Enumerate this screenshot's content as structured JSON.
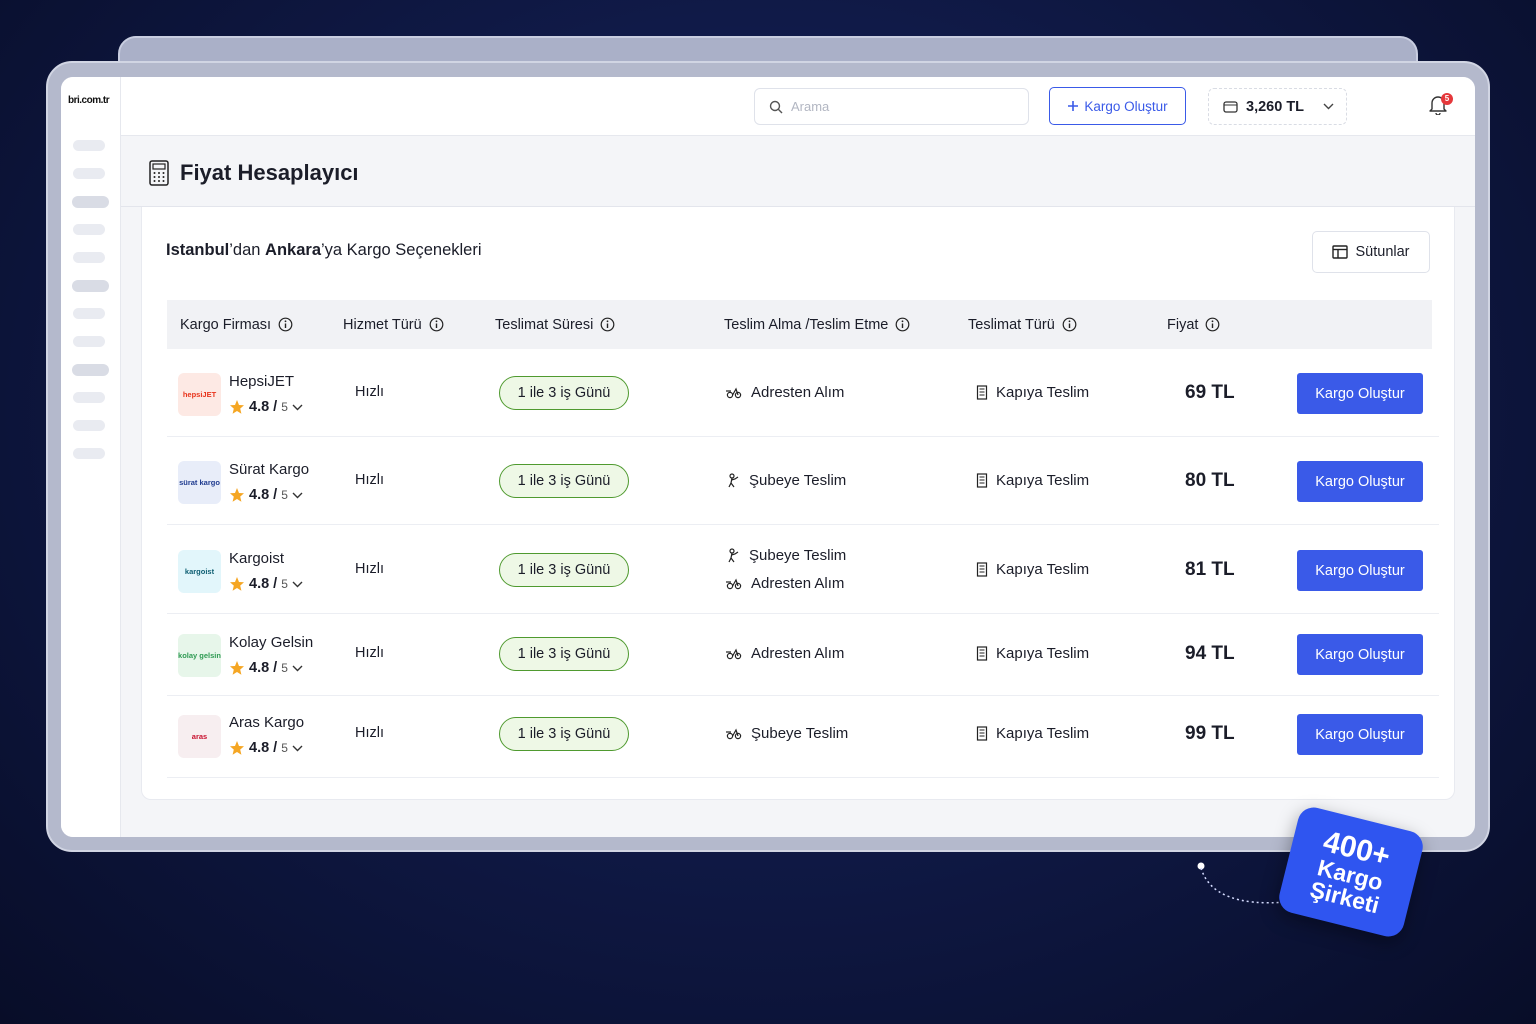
{
  "app": {
    "logo": "bri.com.tr"
  },
  "topbar": {
    "search_placeholder": "Arama",
    "create_label": "Kargo Oluştur",
    "balance": "3,260 TL",
    "notifications_count": "5"
  },
  "page": {
    "title": "Fiyat Hesaplayıcı"
  },
  "card": {
    "title_from": "Istanbul",
    "title_from_suffix": "’dan ",
    "title_to": "Ankara",
    "title_rest": "’ya Kargo Seçenekleri",
    "columns_label": "Sütunlar"
  },
  "table": {
    "headers": [
      "Kargo Firması",
      "Hizmet Türü",
      "Teslimat Süresi",
      "Teslim Alma /Teslim Etme",
      "Teslimat Türü",
      "Fiyat"
    ],
    "rows": [
      {
        "name": "HepsiJET",
        "logo_text": "hepsiJET",
        "rating": "4.8",
        "rating_max": "5",
        "service": "Hızlı",
        "duration": "1 ile 3 iş Günü",
        "pickup": [
          "Adresten Alım"
        ],
        "delivery": "Kapıya Teslim",
        "price": "69 TL",
        "action": "Kargo Oluştur"
      },
      {
        "name": "Sürat Kargo",
        "logo_text": "sürat kargo",
        "rating": "4.8",
        "rating_max": "5",
        "service": "Hızlı",
        "duration": "1 ile 3 iş Günü",
        "pickup": [
          "Şubeye Teslim"
        ],
        "delivery": "Kapıya Teslim",
        "price": "80 TL",
        "action": "Kargo Oluştur"
      },
      {
        "name": "Kargoist",
        "logo_text": "kargoist",
        "rating": "4.8",
        "rating_max": "5",
        "service": "Hızlı",
        "duration": "1 ile 3 iş Günü",
        "pickup": [
          "Şubeye Teslim",
          "Adresten Alım"
        ],
        "delivery": "Kapıya Teslim",
        "price": "81 TL",
        "action": "Kargo Oluştur"
      },
      {
        "name": "Kolay Gelsin",
        "logo_text": "kolay gelsin",
        "rating": "4.8",
        "rating_max": "5",
        "service": "Hızlı",
        "duration": "1 ile 3 iş Günü",
        "pickup": [
          "Adresten Alım"
        ],
        "delivery": "Kapıya Teslim",
        "price": "94 TL",
        "action": "Kargo Oluştur"
      },
      {
        "name": "Aras Kargo",
        "logo_text": "aras",
        "rating": "4.8",
        "rating_max": "5",
        "service": "Hızlı",
        "duration": "1 ile 3 iş Günü",
        "pickup": [
          "Şubeye Teslim"
        ],
        "delivery": "Kapıya Teslim",
        "price": "99 TL",
        "action": "Kargo Oluştur"
      }
    ]
  },
  "sticker": {
    "line1": "400+",
    "line2": "Kargo",
    "line3": "Şirketi"
  },
  "colors": {
    "accent": "#3a5ae8",
    "pill_bg": "#eef8e6",
    "pill_border": "#4f9a2f",
    "star": "#f5a623"
  },
  "icons": [
    "search-icon",
    "plus-icon",
    "wallet-icon",
    "chevron-down-icon",
    "bell-icon",
    "flag-icon",
    "calculator-icon",
    "columns-icon",
    "info-icon",
    "star-icon",
    "pickup-icon",
    "branch-icon",
    "door-icon"
  ]
}
